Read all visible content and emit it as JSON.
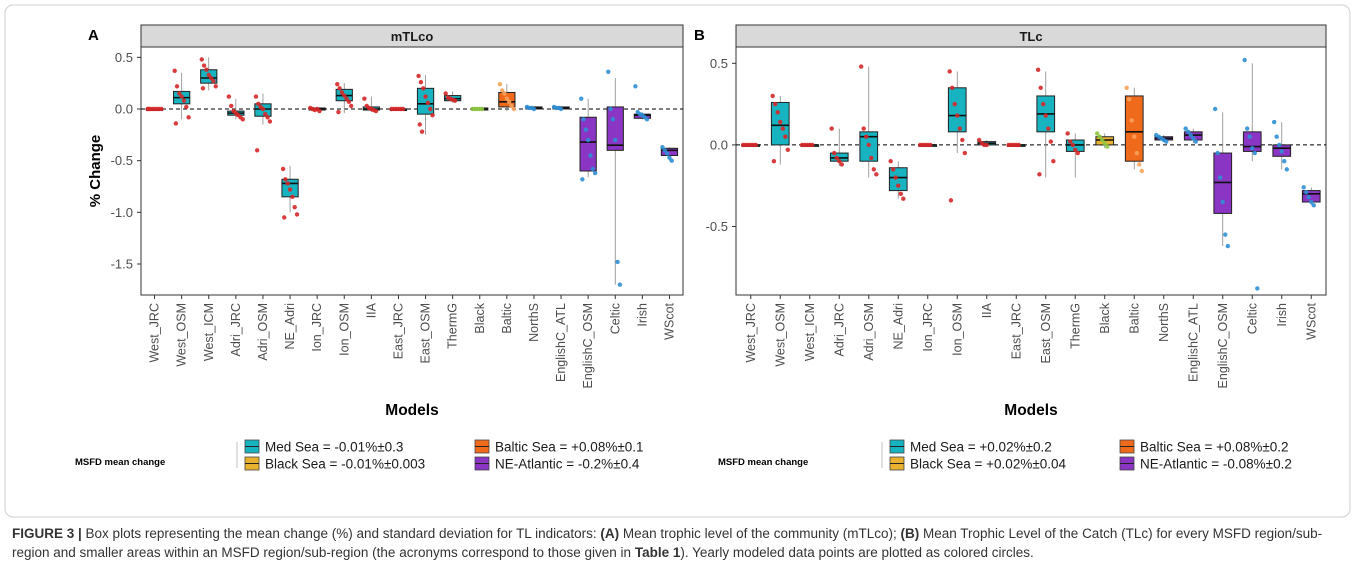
{
  "caption": {
    "label": "FIGURE 3 |",
    "segments": [
      {
        "t": " Box plots representing the mean change (%) and standard deviation for TL indicators: ",
        "b": false
      },
      {
        "t": "(A)",
        "b": true
      },
      {
        "t": " Mean trophic level of the community (mTLco); ",
        "b": false
      },
      {
        "t": "(B)",
        "b": true
      },
      {
        "t": " Mean Trophic Level of the Catch (TLc) for every MSFD region/sub-region and smaller areas within an MSFD region/sub-region (the acronyms correspond to those given in ",
        "b": false
      },
      {
        "t": "Table 1",
        "b": true
      },
      {
        "t": "). Yearly modeled data points are plotted as colored circles.",
        "b": false
      }
    ]
  },
  "colors": {
    "Med": "#17b3c0",
    "Black": "#e8b12f",
    "Baltic": "#f06a1c",
    "NE": "#8a35c4",
    "strip": "#d9d9d9",
    "points": {
      "Med": "#d62728",
      "Black": "#8dc63f",
      "Baltic": "#f7a35c",
      "NE": "#2d8fd5"
    }
  },
  "chart_data": [
    {
      "panel_label": "A",
      "title": "mTLco",
      "type": "box",
      "ylabel": "% Change",
      "xlabel": "Models",
      "ylim": [
        -1.8,
        0.6
      ],
      "yticks": [
        0.5,
        0.0,
        -0.5,
        -1.0,
        -1.5
      ],
      "ytick_labels": [
        "0.5",
        "0.0",
        "-0.5",
        "-1.0",
        "-1.5"
      ],
      "reference_line": 0,
      "categories": [
        "West_JRC",
        "West_OSM",
        "West_ICM",
        "Adri_JRC",
        "Adri_OSM",
        "NE_Adri",
        "Ion_JRC",
        "Ion_OSM",
        "IIA",
        "East_JRC",
        "East_OSM",
        "ThermG",
        "Black",
        "Baltic",
        "NorthS",
        "EnglishC_ATL",
        "EnglishC_OSM",
        "Celtic",
        "Irish",
        "WScot"
      ],
      "groups": [
        "Med",
        "Med",
        "Med",
        "Med",
        "Med",
        "Med",
        "Med",
        "Med",
        "Med",
        "Med",
        "Med",
        "Med",
        "Black",
        "Baltic",
        "NE",
        "NE",
        "NE",
        "NE",
        "NE",
        "NE"
      ],
      "boxes": [
        {
          "q1": 0,
          "med": 0,
          "q3": 0,
          "lo": 0,
          "hi": 0,
          "pts": [
            0,
            0,
            0,
            0,
            0,
            0,
            0,
            0
          ]
        },
        {
          "q1": 0.05,
          "med": 0.11,
          "q3": 0.17,
          "lo": -0.1,
          "hi": 0.35,
          "pts": [
            0.37,
            0.22,
            0.15,
            0.12,
            0.08,
            0.02,
            -0.08,
            -0.14
          ]
        },
        {
          "q1": 0.25,
          "med": 0.3,
          "q3": 0.38,
          "lo": 0.18,
          "hi": 0.5,
          "pts": [
            0.48,
            0.42,
            0.38,
            0.33,
            0.3,
            0.27,
            0.22,
            0.2
          ]
        },
        {
          "q1": -0.06,
          "med": -0.04,
          "q3": -0.02,
          "lo": -0.1,
          "hi": 0.1,
          "pts": [
            0.12,
            0.03,
            -0.02,
            -0.04,
            -0.06,
            -0.08,
            -0.1
          ]
        },
        {
          "q1": -0.07,
          "med": 0.0,
          "q3": 0.05,
          "lo": -0.15,
          "hi": 0.15,
          "pts": [
            0.12,
            0.05,
            0.02,
            0.0,
            -0.05,
            -0.08,
            -0.12,
            -0.4
          ]
        },
        {
          "q1": -0.85,
          "med": -0.72,
          "q3": -0.68,
          "lo": -1.0,
          "hi": -0.55,
          "pts": [
            -0.58,
            -0.68,
            -0.72,
            -0.78,
            -0.85,
            -0.95,
            -1.02,
            -1.05
          ]
        },
        {
          "q1": -0.01,
          "med": 0,
          "q3": 0.01,
          "lo": -0.02,
          "hi": 0.02,
          "pts": [
            0.01,
            0,
            -0.01,
            0,
            -0.02
          ]
        },
        {
          "q1": 0.08,
          "med": 0.13,
          "q3": 0.19,
          "lo": -0.04,
          "hi": 0.25,
          "pts": [
            0.24,
            0.2,
            0.16,
            0.13,
            0.1,
            0.07,
            0.03,
            -0.03
          ]
        },
        {
          "q1": -0.01,
          "med": 0.0,
          "q3": 0.02,
          "lo": -0.03,
          "hi": 0.12,
          "pts": [
            0.1,
            0.03,
            0.01,
            0,
            -0.01,
            -0.02
          ]
        },
        {
          "q1": 0,
          "med": 0,
          "q3": 0,
          "lo": 0,
          "hi": 0,
          "pts": [
            0,
            0,
            0,
            0,
            0,
            0
          ]
        },
        {
          "q1": -0.05,
          "med": 0.05,
          "q3": 0.2,
          "lo": -0.25,
          "hi": 0.33,
          "pts": [
            0.32,
            0.26,
            0.2,
            0.12,
            0.06,
            0,
            -0.06,
            -0.15,
            -0.22
          ]
        },
        {
          "q1": 0.08,
          "med": 0.1,
          "q3": 0.13,
          "lo": 0.06,
          "hi": 0.17,
          "pts": [
            0.15,
            0.11,
            0.1,
            0.09,
            0.08
          ]
        },
        {
          "q1": -0.01,
          "med": 0,
          "q3": 0.01,
          "lo": -0.01,
          "hi": 0.01,
          "pts": [
            0,
            0,
            0,
            0,
            0
          ]
        },
        {
          "q1": 0.02,
          "med": 0.07,
          "q3": 0.16,
          "lo": -0.02,
          "hi": 0.24,
          "pts": [
            0.24,
            0.18,
            0.15,
            0.1,
            0.07,
            0.03,
            0.0
          ]
        },
        {
          "q1": 0,
          "med": 0.01,
          "q3": 0.02,
          "lo": -0.01,
          "hi": 0.03,
          "pts": [
            0.02,
            0.01,
            0.01,
            0
          ]
        },
        {
          "q1": 0,
          "med": 0.01,
          "q3": 0.02,
          "lo": -0.01,
          "hi": 0.03,
          "pts": [
            0.02,
            0.01,
            0.01,
            0.0
          ]
        },
        {
          "q1": -0.6,
          "med": -0.32,
          "q3": -0.08,
          "lo": -0.66,
          "hi": 0.1,
          "pts": [
            0.1,
            -0.1,
            -0.2,
            -0.3,
            -0.45,
            -0.58,
            -0.62,
            -0.68
          ]
        },
        {
          "q1": -0.4,
          "med": -0.35,
          "q3": 0.02,
          "lo": -1.7,
          "hi": 0.3,
          "pts": [
            0.36,
            0.0,
            -0.1,
            -0.3,
            -1.48,
            -1.7
          ]
        },
        {
          "q1": -0.09,
          "med": -0.06,
          "q3": -0.05,
          "lo": -0.1,
          "hi": -0.03,
          "pts": [
            0.22,
            -0.03,
            -0.05,
            -0.06,
            -0.08,
            -0.1
          ]
        },
        {
          "q1": -0.45,
          "med": -0.4,
          "q3": -0.38,
          "lo": -0.5,
          "hi": -0.37,
          "pts": [
            -0.37,
            -0.4,
            -0.43,
            -0.47,
            -0.5
          ]
        }
      ]
    },
    {
      "panel_label": "B",
      "title": "TLc",
      "type": "box",
      "ylabel": "",
      "xlabel": "Models",
      "ylim": [
        -0.92,
        0.6
      ],
      "yticks": [
        0.5,
        0.0,
        -0.5
      ],
      "ytick_labels": [
        "0.5",
        "0.0",
        "-0.5"
      ],
      "reference_line": 0,
      "categories": [
        "West_JRC",
        "West_OSM",
        "West_ICM",
        "Adri_JRC",
        "Adri_OSM",
        "NE_Adri",
        "Ion_JRC",
        "Ion_OSM",
        "IIA",
        "East_JRC",
        "East_OSM",
        "ThermG",
        "Black",
        "Baltic",
        "NorthS",
        "EnglishC_ATL",
        "EnglishC_OSM",
        "Celtic",
        "Irish",
        "WScot"
      ],
      "groups": [
        "Med",
        "Med",
        "Med",
        "Med",
        "Med",
        "Med",
        "Med",
        "Med",
        "Med",
        "Med",
        "Med",
        "Med",
        "Black",
        "Baltic",
        "NE",
        "NE",
        "NE",
        "NE",
        "NE",
        "NE"
      ],
      "boxes": [
        {
          "q1": 0,
          "med": 0,
          "q3": 0,
          "lo": 0,
          "hi": 0,
          "pts": [
            0,
            0,
            0,
            0,
            0,
            0
          ]
        },
        {
          "q1": 0.0,
          "med": 0.12,
          "q3": 0.26,
          "lo": -0.12,
          "hi": 0.3,
          "pts": [
            0.3,
            0.25,
            0.2,
            0.14,
            0.1,
            0.05,
            -0.03,
            -0.1
          ]
        },
        {
          "q1": 0,
          "med": 0,
          "q3": 0,
          "lo": 0,
          "hi": 0,
          "pts": [
            0,
            0,
            0,
            0,
            0
          ]
        },
        {
          "q1": -0.1,
          "med": -0.08,
          "q3": -0.05,
          "lo": -0.13,
          "hi": 0.1,
          "pts": [
            0.1,
            -0.05,
            -0.08,
            -0.1,
            -0.12
          ]
        },
        {
          "q1": -0.1,
          "med": 0.05,
          "q3": 0.08,
          "lo": -0.2,
          "hi": 0.48,
          "pts": [
            0.48,
            0.1,
            0.05,
            0,
            -0.08,
            -0.15,
            -0.18
          ]
        },
        {
          "q1": -0.28,
          "med": -0.2,
          "q3": -0.14,
          "lo": -0.33,
          "hi": -0.1,
          "pts": [
            -0.1,
            -0.15,
            -0.2,
            -0.25,
            -0.3,
            -0.33
          ]
        },
        {
          "q1": 0,
          "med": 0,
          "q3": 0,
          "lo": 0,
          "hi": 0,
          "pts": [
            0,
            0,
            0,
            0,
            0
          ]
        },
        {
          "q1": 0.08,
          "med": 0.18,
          "q3": 0.35,
          "lo": -0.05,
          "hi": 0.45,
          "pts": [
            0.45,
            0.35,
            0.25,
            0.18,
            0.1,
            0.03,
            -0.05,
            -0.34
          ]
        },
        {
          "q1": 0,
          "med": 0.01,
          "q3": 0.02,
          "lo": -0.01,
          "hi": 0.03,
          "pts": [
            0.03,
            0.01,
            0,
            0
          ]
        },
        {
          "q1": 0,
          "med": 0,
          "q3": 0,
          "lo": 0,
          "hi": 0,
          "pts": [
            0,
            0,
            0,
            0,
            0
          ]
        },
        {
          "q1": 0.08,
          "med": 0.19,
          "q3": 0.3,
          "lo": -0.2,
          "hi": 0.45,
          "pts": [
            0.46,
            0.35,
            0.25,
            0.18,
            0.1,
            0.02,
            -0.1,
            -0.18
          ]
        },
        {
          "q1": -0.04,
          "med": 0,
          "q3": 0.03,
          "lo": -0.2,
          "hi": 0.07,
          "pts": [
            0.07,
            0.02,
            0,
            -0.03,
            -0.05
          ]
        },
        {
          "q1": 0.0,
          "med": 0.03,
          "q3": 0.05,
          "lo": -0.02,
          "hi": 0.07,
          "pts": [
            0.07,
            0.05,
            0.03,
            0.01,
            -0.01
          ]
        },
        {
          "q1": -0.1,
          "med": 0.08,
          "q3": 0.3,
          "lo": -0.15,
          "hi": 0.35,
          "pts": [
            0.35,
            0.28,
            0.15,
            0.05,
            -0.05,
            -0.12,
            -0.16
          ]
        },
        {
          "q1": 0.03,
          "med": 0.04,
          "q3": 0.05,
          "lo": 0.02,
          "hi": 0.06,
          "pts": [
            0.06,
            0.05,
            0.04,
            0.03,
            0.02
          ]
        },
        {
          "q1": 0.03,
          "med": 0.06,
          "q3": 0.08,
          "lo": 0.01,
          "hi": 0.1,
          "pts": [
            0.1,
            0.08,
            0.06,
            0.04,
            0.02
          ]
        },
        {
          "q1": -0.42,
          "med": -0.23,
          "q3": -0.05,
          "lo": -0.62,
          "hi": 0.2,
          "pts": [
            0.22,
            -0.05,
            -0.2,
            -0.35,
            -0.55,
            -0.62
          ]
        },
        {
          "q1": -0.04,
          "med": -0.01,
          "q3": 0.08,
          "lo": -0.1,
          "hi": 0.5,
          "pts": [
            0.52,
            0.1,
            0.05,
            -0.02,
            -0.05,
            -0.88
          ]
        },
        {
          "q1": -0.07,
          "med": -0.02,
          "q3": 0.0,
          "lo": -0.15,
          "hi": 0.14,
          "pts": [
            0.14,
            0.05,
            0.0,
            -0.04,
            -0.1,
            -0.15
          ]
        },
        {
          "q1": -0.35,
          "med": -0.3,
          "q3": -0.28,
          "lo": -0.37,
          "hi": -0.26,
          "pts": [
            -0.26,
            -0.29,
            -0.32,
            -0.35,
            -0.37
          ]
        }
      ]
    }
  ],
  "legends": [
    {
      "title": "MSFD mean change",
      "items": [
        {
          "key": "Med",
          "label": "Med Sea = -0.01%±0.3"
        },
        {
          "key": "Baltic",
          "label": "Baltic Sea = +0.08%±0.1"
        },
        {
          "key": "Black",
          "label": "Black Sea = -0.01%±0.003"
        },
        {
          "key": "NE",
          "label": "NE-Atlantic = -0.2%±0.4"
        }
      ]
    },
    {
      "title": "MSFD mean change",
      "items": [
        {
          "key": "Med",
          "label": "Med Sea = +0.02%±0.2"
        },
        {
          "key": "Baltic",
          "label": "Baltic Sea = +0.08%±0.2"
        },
        {
          "key": "Black",
          "label": "Black Sea = +0.02%±0.04"
        },
        {
          "key": "NE",
          "label": "NE-Atlantic = -0.08%±0.2"
        }
      ]
    }
  ]
}
